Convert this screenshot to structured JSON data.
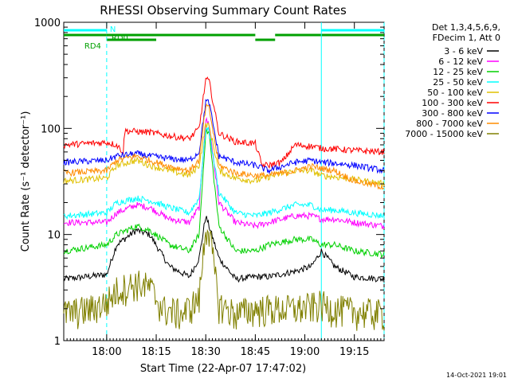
{
  "chart_data": {
    "type": "line",
    "title": "RHESSI Observing Summary Count Rates",
    "xlabel": "Start Time (22-Apr-07 17:47:02)",
    "ylabel": "Count Rate (s⁻¹ detector⁻¹)",
    "ylog": true,
    "xlim_minutes_after_1747": [
      0,
      97
    ],
    "ylim": [
      1,
      1000
    ],
    "x_ticks": [
      {
        "label": "18:00",
        "min": 13
      },
      {
        "label": "18:15",
        "min": 28
      },
      {
        "label": "18:30",
        "min": 43
      },
      {
        "label": "18:45",
        "min": 58
      },
      {
        "label": "19:00",
        "min": 73
      },
      {
        "label": "19:15",
        "min": 88
      }
    ],
    "y_ticks": [
      {
        "label": "1",
        "value": 1
      },
      {
        "label": "10",
        "value": 10
      },
      {
        "label": "100",
        "value": 100
      },
      {
        "label": "1000",
        "value": 1000
      }
    ],
    "legend_header": [
      "Det 1,3,4,5,6,9,",
      "FDecim 1, Att 0"
    ],
    "legend_placement": "right",
    "timestamp": "14-Oct-2021 19:01",
    "series": [
      {
        "name": "3 - 6 keV",
        "color": "#000000",
        "points": [
          [
            0,
            3.8
          ],
          [
            13,
            4.2
          ],
          [
            16,
            8
          ],
          [
            22,
            11
          ],
          [
            26,
            10
          ],
          [
            32,
            5
          ],
          [
            38,
            4
          ],
          [
            41,
            6
          ],
          [
            43,
            15
          ],
          [
            44,
            12
          ],
          [
            47,
            6
          ],
          [
            52,
            3.8
          ],
          [
            58,
            4
          ],
          [
            62,
            4
          ],
          [
            70,
            4.5
          ],
          [
            75,
            5
          ],
          [
            78,
            7
          ],
          [
            82,
            5
          ],
          [
            88,
            4
          ],
          [
            97,
            3.8
          ]
        ]
      },
      {
        "name": "6 - 12 keV",
        "color": "#ff00ff",
        "points": [
          [
            0,
            13
          ],
          [
            13,
            13
          ],
          [
            16,
            16
          ],
          [
            22,
            19
          ],
          [
            26,
            18
          ],
          [
            32,
            14
          ],
          [
            38,
            13
          ],
          [
            41,
            18
          ],
          [
            43,
            120
          ],
          [
            44,
            110
          ],
          [
            47,
            20
          ],
          [
            52,
            13
          ],
          [
            58,
            12
          ],
          [
            62,
            13
          ],
          [
            70,
            15
          ],
          [
            75,
            15
          ],
          [
            78,
            14
          ],
          [
            82,
            14
          ],
          [
            88,
            13
          ],
          [
            97,
            12
          ]
        ]
      },
      {
        "name": "12 - 25 keV",
        "color": "#00d000",
        "points": [
          [
            0,
            7
          ],
          [
            13,
            8
          ],
          [
            16,
            10
          ],
          [
            22,
            12
          ],
          [
            26,
            11
          ],
          [
            32,
            8
          ],
          [
            38,
            7
          ],
          [
            41,
            10
          ],
          [
            43,
            95
          ],
          [
            44,
            90
          ],
          [
            47,
            12
          ],
          [
            52,
            7
          ],
          [
            58,
            7
          ],
          [
            62,
            8
          ],
          [
            70,
            9
          ],
          [
            75,
            9
          ],
          [
            78,
            8
          ],
          [
            82,
            8
          ],
          [
            88,
            7
          ],
          [
            97,
            6.5
          ]
        ]
      },
      {
        "name": "25 - 50 keV",
        "color": "#00ffff",
        "points": [
          [
            0,
            15
          ],
          [
            13,
            16
          ],
          [
            16,
            20
          ],
          [
            22,
            22
          ],
          [
            26,
            21
          ],
          [
            32,
            18
          ],
          [
            38,
            16
          ],
          [
            41,
            22
          ],
          [
            43,
            100
          ],
          [
            44,
            95
          ],
          [
            47,
            25
          ],
          [
            52,
            16
          ],
          [
            58,
            15
          ],
          [
            62,
            16
          ],
          [
            70,
            19
          ],
          [
            75,
            19
          ],
          [
            78,
            17
          ],
          [
            82,
            17
          ],
          [
            88,
            16
          ],
          [
            97,
            15
          ]
        ]
      },
      {
        "name": "50 - 100 keV",
        "color": "#e0c000",
        "points": [
          [
            0,
            32
          ],
          [
            13,
            34
          ],
          [
            16,
            45
          ],
          [
            22,
            50
          ],
          [
            26,
            45
          ],
          [
            32,
            40
          ],
          [
            38,
            36
          ],
          [
            41,
            45
          ],
          [
            43,
            110
          ],
          [
            44,
            105
          ],
          [
            47,
            40
          ],
          [
            52,
            34
          ],
          [
            58,
            32
          ],
          [
            62,
            35
          ],
          [
            70,
            40
          ],
          [
            75,
            40
          ],
          [
            78,
            36
          ],
          [
            82,
            35
          ],
          [
            88,
            33
          ],
          [
            97,
            30
          ]
        ]
      },
      {
        "name": "100 - 300 keV",
        "color": "#ff0000",
        "points": [
          [
            0,
            70
          ],
          [
            13,
            74
          ],
          [
            16,
            70
          ],
          [
            18,
            60
          ],
          [
            18.5,
            95
          ],
          [
            26,
            92
          ],
          [
            32,
            85
          ],
          [
            38,
            80
          ],
          [
            41,
            100
          ],
          [
            43,
            290
          ],
          [
            44,
            280
          ],
          [
            47,
            90
          ],
          [
            52,
            75
          ],
          [
            58,
            72
          ],
          [
            60,
            45
          ],
          [
            62,
            45
          ],
          [
            66,
            48
          ],
          [
            70,
            70
          ],
          [
            75,
            68
          ],
          [
            78,
            65
          ],
          [
            82,
            64
          ],
          [
            88,
            62
          ],
          [
            97,
            60
          ]
        ]
      },
      {
        "name": "300 - 800 keV",
        "color": "#0000ff",
        "points": [
          [
            0,
            48
          ],
          [
            13,
            50
          ],
          [
            16,
            55
          ],
          [
            22,
            58
          ],
          [
            26,
            55
          ],
          [
            32,
            52
          ],
          [
            38,
            50
          ],
          [
            41,
            60
          ],
          [
            43,
            180
          ],
          [
            44,
            175
          ],
          [
            47,
            55
          ],
          [
            52,
            48
          ],
          [
            58,
            45
          ],
          [
            62,
            40
          ],
          [
            70,
            48
          ],
          [
            75,
            50
          ],
          [
            78,
            48
          ],
          [
            82,
            47
          ],
          [
            88,
            45
          ],
          [
            97,
            40
          ]
        ]
      },
      {
        "name": "800 - 7000 keV",
        "color": "#ff8c00",
        "points": [
          [
            0,
            38
          ],
          [
            13,
            40
          ],
          [
            16,
            50
          ],
          [
            22,
            55
          ],
          [
            26,
            50
          ],
          [
            32,
            44
          ],
          [
            38,
            40
          ],
          [
            41,
            50
          ],
          [
            43,
            160
          ],
          [
            44,
            155
          ],
          [
            47,
            45
          ],
          [
            52,
            38
          ],
          [
            58,
            36
          ],
          [
            62,
            36
          ],
          [
            70,
            40
          ],
          [
            75,
            44
          ],
          [
            78,
            42
          ],
          [
            82,
            40
          ],
          [
            88,
            32
          ],
          [
            97,
            28
          ]
        ]
      },
      {
        "name": "7000 - 15000 keV",
        "color": "#808000",
        "points": [
          [
            0,
            1.8
          ],
          [
            8,
            2.0
          ],
          [
            13,
            2.3
          ],
          [
            16,
            3
          ],
          [
            22,
            3.5
          ],
          [
            26,
            3.2
          ],
          [
            30,
            2.0
          ],
          [
            36,
            1.8
          ],
          [
            41,
            2.5
          ],
          [
            43,
            12
          ],
          [
            44,
            11
          ],
          [
            47,
            2.2
          ],
          [
            52,
            1.8
          ],
          [
            58,
            2
          ],
          [
            62,
            2
          ],
          [
            70,
            2
          ],
          [
            75,
            2.1
          ],
          [
            78,
            2.2
          ],
          [
            82,
            2
          ],
          [
            88,
            1.9
          ],
          [
            97,
            1.8
          ]
        ]
      }
    ],
    "flag_labels": [
      {
        "text": "N",
        "color": "#00ffff"
      },
      {
        "text": "RD0",
        "color": "#00a000"
      },
      {
        "text": "RD4",
        "color": "#00a000"
      }
    ],
    "flag_bars": [
      {
        "color": "#00ffff",
        "y": 1.5,
        "ranges": [
          [
            0,
            13
          ],
          [
            78,
            97
          ]
        ]
      },
      {
        "color": "#00a000",
        "y": 1.0,
        "ranges": [
          [
            0,
            13
          ],
          [
            13,
            58
          ],
          [
            64,
            97
          ]
        ]
      },
      {
        "color": "#00a000",
        "y": 0.5,
        "ranges": [
          [
            13,
            28
          ],
          [
            58,
            64
          ]
        ]
      }
    ],
    "dashed_markers_min": [
      13,
      97
    ],
    "solid_markers_min": [
      78
    ]
  }
}
